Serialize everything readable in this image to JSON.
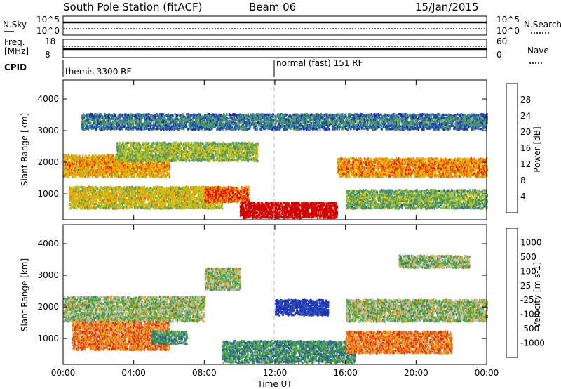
{
  "header": {
    "station": "South Pole Station (fitACF)",
    "beam": "Beam 06",
    "date": "15/Jan/2015"
  },
  "top_panels": {
    "nsky_label": "N.Sky",
    "nsearch_label": "N.Search",
    "nsky_ticks": [
      "10^5",
      "10^0"
    ],
    "nsearch_ticks": [
      "10^5",
      "10^0"
    ],
    "freq_label": "Freq.",
    "freq_unit": "[MHz]",
    "freq_ticks": [
      "18",
      "8"
    ],
    "nave_label": "Nave",
    "nave_ticks": [
      "60",
      "0"
    ],
    "cpid_label": "CPID",
    "cpid_segments": [
      "themis 3300 RF",
      "normal (fast) 151 RF"
    ]
  },
  "chart_data": [
    {
      "type": "heatmap",
      "name": "power",
      "ylabel": "Slant Range [km]",
      "xlabel": "Time UT",
      "x_ticks": [
        "00:00",
        "04:00",
        "08:00",
        "12:00",
        "16:00",
        "20:00",
        "00:00"
      ],
      "x_range_hours": [
        0,
        24
      ],
      "y_ticks": [
        1000,
        2000,
        3000,
        4000
      ],
      "ylim": [
        180,
        4600
      ],
      "colorbar": {
        "label": "Power [dB]",
        "ticks": [
          "28",
          "24",
          "20",
          "16",
          "12",
          "8",
          "4"
        ],
        "colors": [
          "#2020d0",
          "#2050b0",
          "#3a8a8a",
          "#55a055",
          "#a0c040",
          "#e0c000",
          "#f0a000",
          "#f06000",
          "#e02000",
          "#d00000"
        ]
      },
      "bands": [
        {
          "t0": 0.0,
          "t1": 6.0,
          "r0": 1500,
          "r1": 2200,
          "level": 0.55
        },
        {
          "t0": 3.0,
          "t1": 11.0,
          "r0": 2000,
          "r1": 2600,
          "level": 0.35
        },
        {
          "t0": 0.3,
          "t1": 9.0,
          "r0": 500,
          "r1": 1200,
          "level": 0.45
        },
        {
          "t0": 8.0,
          "t1": 10.5,
          "r0": 700,
          "r1": 1200,
          "level": 0.7
        },
        {
          "t0": 10.0,
          "t1": 15.5,
          "r0": 200,
          "r1": 700,
          "level": 0.95
        },
        {
          "t0": 15.5,
          "t1": 24.0,
          "r0": 1500,
          "r1": 2100,
          "level": 0.6
        },
        {
          "t0": 1.0,
          "t1": 24.0,
          "r0": 3000,
          "r1": 3500,
          "level": 0.15
        },
        {
          "t0": 16.0,
          "t1": 24.0,
          "r0": 500,
          "r1": 1100,
          "level": 0.3
        }
      ]
    },
    {
      "type": "heatmap",
      "name": "velocity",
      "ylabel": "Slant Range [km]",
      "xlabel": "Time UT",
      "x_ticks": [
        "00:00",
        "04:00",
        "08:00",
        "12:00",
        "16:00",
        "20:00",
        "00:00"
      ],
      "x_range_hours": [
        0,
        24
      ],
      "y_ticks": [
        1000,
        2000,
        3000,
        4000
      ],
      "ylim": [
        180,
        4600
      ],
      "colorbar": {
        "label": "Velocity [m s-1]",
        "ticks": [
          "1000",
          "500",
          "100",
          "25",
          "-25",
          "-100",
          "-500",
          "-1000"
        ],
        "colors": [
          "#2030c0",
          "#2a60a0",
          "#3a8a60",
          "#50b040",
          "#c0c0b8",
          "#f0a020",
          "#f07010",
          "#e03010",
          "#d00000"
        ]
      },
      "bands": [
        {
          "t0": 0.0,
          "t1": 8.0,
          "r0": 1500,
          "r1": 2300,
          "level": 0.45
        },
        {
          "t0": 0.5,
          "t1": 6.0,
          "r0": 600,
          "r1": 1500,
          "level": 0.7
        },
        {
          "t0": 5.0,
          "t1": 7.0,
          "r0": 800,
          "r1": 1200,
          "level": 0.3
        },
        {
          "t0": 8.0,
          "t1": 10.0,
          "r0": 2500,
          "r1": 3200,
          "level": 0.45
        },
        {
          "t0": 9.0,
          "t1": 16.5,
          "r0": 200,
          "r1": 900,
          "level": 0.3
        },
        {
          "t0": 12.0,
          "t1": 15.0,
          "r0": 1700,
          "r1": 2200,
          "level": 0.05
        },
        {
          "t0": 16.0,
          "t1": 24.0,
          "r0": 1500,
          "r1": 2200,
          "level": 0.45
        },
        {
          "t0": 16.0,
          "t1": 22.0,
          "r0": 500,
          "r1": 1200,
          "level": 0.7
        },
        {
          "t0": 19.0,
          "t1": 23.0,
          "r0": 3200,
          "r1": 3600,
          "level": 0.45
        }
      ]
    }
  ]
}
